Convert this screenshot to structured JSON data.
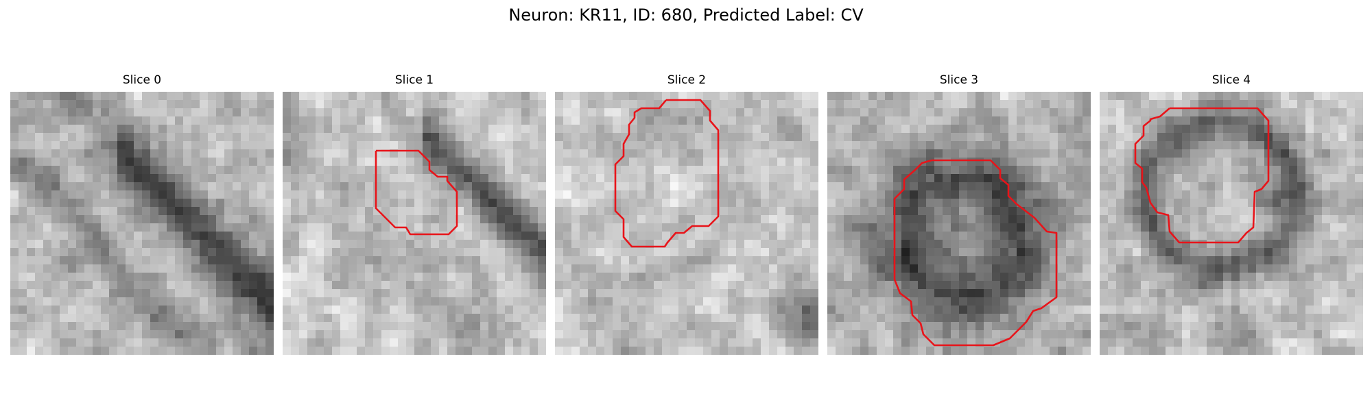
{
  "title": "Neuron: KR11, ID: 680, Predicted Label: CV",
  "contour_color": "#e8141a",
  "panels": [
    {
      "label": "Slice 0",
      "contour": "",
      "image": "grayscale EM patch, dark diagonal membrane band across top-right"
    },
    {
      "label": "Slice 1",
      "contour": "red outline",
      "image": "grayscale EM patch, dark band at top-right corner"
    },
    {
      "label": "Slice 2",
      "contour": "red outline",
      "image": "grayscale EM patch, light mottled texture"
    },
    {
      "label": "Slice 3",
      "contour": "red outline",
      "image": "grayscale EM patch, dark round structure in center"
    },
    {
      "label": "Slice 4",
      "contour": "red outline",
      "image": "grayscale EM patch, ring-shaped structure"
    }
  ]
}
